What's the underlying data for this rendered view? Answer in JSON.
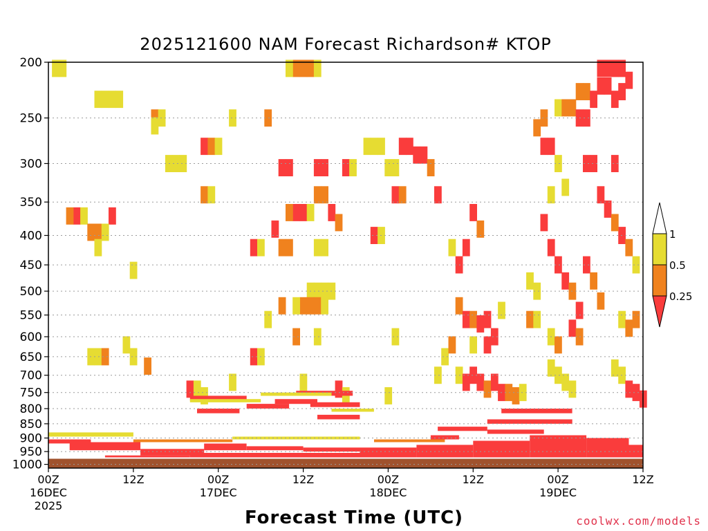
{
  "title": "2025121600 NAM Forecast Richardson# KTOP",
  "xlabel": "Forecast Time (UTC)",
  "credit": "coolwx.com/models",
  "chart_data": {
    "type": "heatmap",
    "title": "2025121600 NAM Forecast Richardson# KTOP",
    "xlabel": "Forecast Time (UTC)",
    "ylabel": "",
    "x_range_hours": [
      0,
      84
    ],
    "y_range_hPa": [
      1000,
      200
    ],
    "y_scale": "log-pressure (inverted)",
    "y_ticks": [
      200,
      250,
      300,
      350,
      400,
      450,
      500,
      550,
      600,
      650,
      700,
      750,
      800,
      850,
      900,
      950,
      1000
    ],
    "x_ticks": [
      {
        "hour": 0,
        "lines": [
          "00Z",
          "16DEC",
          "2025"
        ]
      },
      {
        "hour": 12,
        "lines": [
          "12Z"
        ]
      },
      {
        "hour": 24,
        "lines": [
          "00Z",
          "17DEC"
        ]
      },
      {
        "hour": 36,
        "lines": [
          "12Z"
        ]
      },
      {
        "hour": 48,
        "lines": [
          "00Z",
          "18DEC"
        ]
      },
      {
        "hour": 60,
        "lines": [
          "12Z"
        ]
      },
      {
        "hour": 72,
        "lines": [
          "00Z",
          "19DEC"
        ]
      },
      {
        "hour": 84,
        "lines": [
          "12Z"
        ]
      }
    ],
    "grid": "dotted horizontal lines at pressure ticks",
    "legend_placement": "right",
    "colorbar": {
      "levels": [
        {
          "label": "1",
          "value": 1
        },
        {
          "label": "0.5",
          "value": 0.5
        },
        {
          "label": "0.25",
          "value": 0.25
        }
      ],
      "bins": [
        {
          "range": ">1",
          "color": "#ffffff"
        },
        {
          "range": "0.5-1",
          "color": "#e6dc32"
        },
        {
          "range": "0.25-0.5",
          "color": "#f0821e"
        },
        {
          "range": "<0.25",
          "color": "#fa3c3c"
        }
      ]
    },
    "ground_color": "#a0522d",
    "ground_level_hPa": [
      975,
      1015
    ],
    "cells": [
      {
        "x": 1,
        "y": 205,
        "c": 0
      },
      {
        "x": 2,
        "y": 205,
        "c": 0
      },
      {
        "x": 7,
        "y": 232,
        "c": 0
      },
      {
        "x": 8,
        "y": 232,
        "c": 0
      },
      {
        "x": 9,
        "y": 232,
        "c": 0
      },
      {
        "x": 10,
        "y": 232,
        "c": 0
      },
      {
        "x": 15,
        "y": 250,
        "c": 1
      },
      {
        "x": 16,
        "y": 250,
        "c": 0
      },
      {
        "x": 15,
        "y": 258,
        "c": 0
      },
      {
        "x": 26,
        "y": 250,
        "c": 0
      },
      {
        "x": 31,
        "y": 250,
        "c": 1
      },
      {
        "x": 35,
        "y": 205,
        "c": 1
      },
      {
        "x": 36,
        "y": 205,
        "c": 1
      },
      {
        "x": 37,
        "y": 205,
        "c": 1
      },
      {
        "x": 34,
        "y": 205,
        "c": 0
      },
      {
        "x": 38,
        "y": 205,
        "c": 0
      },
      {
        "x": 22,
        "y": 280,
        "c": 2
      },
      {
        "x": 23,
        "y": 280,
        "c": 1
      },
      {
        "x": 24,
        "y": 280,
        "c": 0
      },
      {
        "x": 17,
        "y": 300,
        "c": 0
      },
      {
        "x": 18,
        "y": 300,
        "c": 0
      },
      {
        "x": 19,
        "y": 300,
        "c": 0
      },
      {
        "x": 22,
        "y": 340,
        "c": 1
      },
      {
        "x": 23,
        "y": 340,
        "c": 0
      },
      {
        "x": 33,
        "y": 305,
        "c": 2
      },
      {
        "x": 34,
        "y": 305,
        "c": 2
      },
      {
        "x": 38,
        "y": 305,
        "c": 2
      },
      {
        "x": 39,
        "y": 305,
        "c": 2
      },
      {
        "x": 42,
        "y": 305,
        "c": 2
      },
      {
        "x": 43,
        "y": 305,
        "c": 0
      },
      {
        "x": 45,
        "y": 280,
        "c": 0
      },
      {
        "x": 46,
        "y": 280,
        "c": 0
      },
      {
        "x": 47,
        "y": 280,
        "c": 0
      },
      {
        "x": 48,
        "y": 305,
        "c": 0
      },
      {
        "x": 49,
        "y": 305,
        "c": 0
      },
      {
        "x": 50,
        "y": 280,
        "c": 2
      },
      {
        "x": 51,
        "y": 280,
        "c": 2
      },
      {
        "x": 52,
        "y": 290,
        "c": 2
      },
      {
        "x": 53,
        "y": 290,
        "c": 2
      },
      {
        "x": 49,
        "y": 340,
        "c": 2
      },
      {
        "x": 50,
        "y": 340,
        "c": 1
      },
      {
        "x": 54,
        "y": 305,
        "c": 1
      },
      {
        "x": 55,
        "y": 340,
        "c": 2
      },
      {
        "x": 35,
        "y": 365,
        "c": 2
      },
      {
        "x": 36,
        "y": 365,
        "c": 2
      },
      {
        "x": 34,
        "y": 365,
        "c": 1
      },
      {
        "x": 37,
        "y": 365,
        "c": 0
      },
      {
        "x": 38,
        "y": 340,
        "c": 1
      },
      {
        "x": 39,
        "y": 340,
        "c": 1
      },
      {
        "x": 40,
        "y": 365,
        "c": 2
      },
      {
        "x": 41,
        "y": 380,
        "c": 1
      },
      {
        "x": 46,
        "y": 400,
        "c": 2
      },
      {
        "x": 47,
        "y": 400,
        "c": 0
      },
      {
        "x": 32,
        "y": 390,
        "c": 2
      },
      {
        "x": 33,
        "y": 420,
        "c": 1
      },
      {
        "x": 34,
        "y": 420,
        "c": 1
      },
      {
        "x": 29,
        "y": 420,
        "c": 2
      },
      {
        "x": 30,
        "y": 420,
        "c": 0
      },
      {
        "x": 38,
        "y": 420,
        "c": 0
      },
      {
        "x": 39,
        "y": 420,
        "c": 0
      },
      {
        "x": 4,
        "y": 370,
        "c": 2
      },
      {
        "x": 3,
        "y": 370,
        "c": 1
      },
      {
        "x": 5,
        "y": 370,
        "c": 0
      },
      {
        "x": 9,
        "y": 370,
        "c": 2
      },
      {
        "x": 6,
        "y": 395,
        "c": 1
      },
      {
        "x": 7,
        "y": 395,
        "c": 1
      },
      {
        "x": 8,
        "y": 395,
        "c": 0
      },
      {
        "x": 7,
        "y": 420,
        "c": 0
      },
      {
        "x": 12,
        "y": 460,
        "c": 0
      },
      {
        "x": 37,
        "y": 500,
        "c": 0
      },
      {
        "x": 38,
        "y": 500,
        "c": 0
      },
      {
        "x": 39,
        "y": 500,
        "c": 0
      },
      {
        "x": 40,
        "y": 500,
        "c": 0
      },
      {
        "x": 36,
        "y": 530,
        "c": 1
      },
      {
        "x": 37,
        "y": 530,
        "c": 1
      },
      {
        "x": 38,
        "y": 530,
        "c": 1
      },
      {
        "x": 39,
        "y": 530,
        "c": 0
      },
      {
        "x": 33,
        "y": 530,
        "c": 1
      },
      {
        "x": 35,
        "y": 530,
        "c": 0
      },
      {
        "x": 31,
        "y": 560,
        "c": 0
      },
      {
        "x": 35,
        "y": 600,
        "c": 1
      },
      {
        "x": 38,
        "y": 600,
        "c": 0
      },
      {
        "x": 49,
        "y": 600,
        "c": 0
      },
      {
        "x": 11,
        "y": 620,
        "c": 0
      },
      {
        "x": 6,
        "y": 650,
        "c": 0
      },
      {
        "x": 7,
        "y": 650,
        "c": 0
      },
      {
        "x": 8,
        "y": 650,
        "c": 1
      },
      {
        "x": 12,
        "y": 650,
        "c": 0
      },
      {
        "x": 14,
        "y": 675,
        "c": 1
      },
      {
        "x": 29,
        "y": 650,
        "c": 2
      },
      {
        "x": 30,
        "y": 650,
        "c": 0
      },
      {
        "x": 56,
        "y": 650,
        "c": 0
      },
      {
        "x": 55,
        "y": 700,
        "c": 0
      },
      {
        "x": 57,
        "y": 420,
        "c": 0
      },
      {
        "x": 58,
        "y": 450,
        "c": 2
      },
      {
        "x": 59,
        "y": 420,
        "c": 2
      },
      {
        "x": 60,
        "y": 365,
        "c": 2
      },
      {
        "x": 61,
        "y": 390,
        "c": 1
      },
      {
        "x": 58,
        "y": 530,
        "c": 1
      },
      {
        "x": 59,
        "y": 560,
        "c": 2
      },
      {
        "x": 60,
        "y": 560,
        "c": 1
      },
      {
        "x": 61,
        "y": 570,
        "c": 2
      },
      {
        "x": 62,
        "y": 560,
        "c": 2
      },
      {
        "x": 63,
        "y": 600,
        "c": 2
      },
      {
        "x": 62,
        "y": 620,
        "c": 2
      },
      {
        "x": 60,
        "y": 620,
        "c": 0
      },
      {
        "x": 57,
        "y": 620,
        "c": 1
      },
      {
        "x": 58,
        "y": 700,
        "c": 0
      },
      {
        "x": 59,
        "y": 720,
        "c": 2
      },
      {
        "x": 60,
        "y": 700,
        "c": 2
      },
      {
        "x": 61,
        "y": 720,
        "c": 2
      },
      {
        "x": 62,
        "y": 740,
        "c": 1
      },
      {
        "x": 63,
        "y": 720,
        "c": 2
      },
      {
        "x": 64,
        "y": 750,
        "c": 2
      },
      {
        "x": 65,
        "y": 750,
        "c": 1
      },
      {
        "x": 66,
        "y": 760,
        "c": 1
      },
      {
        "x": 67,
        "y": 750,
        "c": 0
      },
      {
        "x": 64,
        "y": 540,
        "c": 0
      },
      {
        "x": 68,
        "y": 480,
        "c": 0
      },
      {
        "x": 69,
        "y": 500,
        "c": 0
      },
      {
        "x": 68,
        "y": 560,
        "c": 1
      },
      {
        "x": 69,
        "y": 560,
        "c": 0
      },
      {
        "x": 69,
        "y": 260,
        "c": 1
      },
      {
        "x": 70,
        "y": 280,
        "c": 2
      },
      {
        "x": 71,
        "y": 280,
        "c": 2
      },
      {
        "x": 70,
        "y": 250,
        "c": 1
      },
      {
        "x": 72,
        "y": 240,
        "c": 0
      },
      {
        "x": 73,
        "y": 240,
        "c": 1
      },
      {
        "x": 74,
        "y": 240,
        "c": 1
      },
      {
        "x": 75,
        "y": 225,
        "c": 1
      },
      {
        "x": 76,
        "y": 225,
        "c": 1
      },
      {
        "x": 75,
        "y": 250,
        "c": 2
      },
      {
        "x": 76,
        "y": 250,
        "c": 2
      },
      {
        "x": 77,
        "y": 232,
        "c": 2
      },
      {
        "x": 78,
        "y": 220,
        "c": 2
      },
      {
        "x": 79,
        "y": 220,
        "c": 2
      },
      {
        "x": 78,
        "y": 205,
        "c": 2
      },
      {
        "x": 79,
        "y": 205,
        "c": 2
      },
      {
        "x": 80,
        "y": 205,
        "c": 2
      },
      {
        "x": 81,
        "y": 205,
        "c": 2
      },
      {
        "x": 82,
        "y": 215,
        "c": 2
      },
      {
        "x": 80,
        "y": 232,
        "c": 2
      },
      {
        "x": 81,
        "y": 225,
        "c": 2
      },
      {
        "x": 72,
        "y": 300,
        "c": 0
      },
      {
        "x": 73,
        "y": 330,
        "c": 0
      },
      {
        "x": 71,
        "y": 340,
        "c": 0
      },
      {
        "x": 70,
        "y": 380,
        "c": 2
      },
      {
        "x": 71,
        "y": 420,
        "c": 2
      },
      {
        "x": 72,
        "y": 450,
        "c": 2
      },
      {
        "x": 73,
        "y": 480,
        "c": 2
      },
      {
        "x": 74,
        "y": 500,
        "c": 1
      },
      {
        "x": 75,
        "y": 540,
        "c": 2
      },
      {
        "x": 76,
        "y": 450,
        "c": 2
      },
      {
        "x": 77,
        "y": 480,
        "c": 1
      },
      {
        "x": 78,
        "y": 520,
        "c": 1
      },
      {
        "x": 76,
        "y": 300,
        "c": 2
      },
      {
        "x": 77,
        "y": 300,
        "c": 2
      },
      {
        "x": 78,
        "y": 340,
        "c": 2
      },
      {
        "x": 79,
        "y": 360,
        "c": 2
      },
      {
        "x": 80,
        "y": 300,
        "c": 2
      },
      {
        "x": 81,
        "y": 400,
        "c": 2
      },
      {
        "x": 80,
        "y": 380,
        "c": 1
      },
      {
        "x": 82,
        "y": 420,
        "c": 1
      },
      {
        "x": 83,
        "y": 450,
        "c": 0
      },
      {
        "x": 81,
        "y": 560,
        "c": 0
      },
      {
        "x": 82,
        "y": 580,
        "c": 1
      },
      {
        "x": 83,
        "y": 560,
        "c": 1
      },
      {
        "x": 71,
        "y": 600,
        "c": 0
      },
      {
        "x": 72,
        "y": 620,
        "c": 1
      },
      {
        "x": 74,
        "y": 580,
        "c": 2
      },
      {
        "x": 75,
        "y": 600,
        "c": 1
      },
      {
        "x": 71,
        "y": 680,
        "c": 0
      },
      {
        "x": 72,
        "y": 700,
        "c": 0
      },
      {
        "x": 73,
        "y": 720,
        "c": 0
      },
      {
        "x": 74,
        "y": 740,
        "c": 0
      },
      {
        "x": 80,
        "y": 680,
        "c": 0
      },
      {
        "x": 81,
        "y": 700,
        "c": 0
      },
      {
        "x": 82,
        "y": 740,
        "c": 2
      },
      {
        "x": 83,
        "y": 750,
        "c": 2
      },
      {
        "x": 84,
        "y": 770,
        "c": 2
      },
      {
        "x": 20,
        "y": 740,
        "c": 2
      },
      {
        "x": 21,
        "y": 740,
        "c": 0
      },
      {
        "x": 22,
        "y": 760,
        "c": 0
      },
      {
        "x": 26,
        "y": 720,
        "c": 0
      },
      {
        "x": 36,
        "y": 720,
        "c": 0
      },
      {
        "x": 41,
        "y": 740,
        "c": 2
      },
      {
        "x": 42,
        "y": 760,
        "c": 0
      },
      {
        "x": 48,
        "y": 760,
        "c": 0
      }
    ],
    "bands": [
      {
        "x0": 20,
        "x1": 28,
        "p_top": 760,
        "p_bot": 775,
        "c": 2
      },
      {
        "x0": 21,
        "x1": 27,
        "p_top": 800,
        "p_bot": 815,
        "c": 2
      },
      {
        "x0": 28,
        "x1": 34,
        "p_top": 785,
        "p_bot": 800,
        "c": 2
      },
      {
        "x0": 32,
        "x1": 38,
        "p_top": 770,
        "p_bot": 785,
        "c": 2
      },
      {
        "x0": 35,
        "x1": 43,
        "p_top": 745,
        "p_bot": 760,
        "c": 2
      },
      {
        "x0": 37,
        "x1": 44,
        "p_top": 780,
        "p_bot": 795,
        "c": 2
      },
      {
        "x0": 38,
        "x1": 44,
        "p_top": 820,
        "p_bot": 835,
        "c": 2
      },
      {
        "x0": 3,
        "x1": 13,
        "p_top": 915,
        "p_bot": 945,
        "c": 2
      },
      {
        "x0": 0,
        "x1": 6,
        "p_top": 905,
        "p_bot": 920,
        "c": 2
      },
      {
        "x0": 13,
        "x1": 22,
        "p_top": 940,
        "p_bot": 965,
        "c": 2
      },
      {
        "x0": 22,
        "x1": 28,
        "p_top": 920,
        "p_bot": 945,
        "c": 2
      },
      {
        "x0": 28,
        "x1": 36,
        "p_top": 930,
        "p_bot": 945,
        "c": 2
      },
      {
        "x0": 36,
        "x1": 44,
        "p_top": 935,
        "p_bot": 950,
        "c": 2
      },
      {
        "x0": 44,
        "x1": 52,
        "p_top": 935,
        "p_bot": 975,
        "c": 2
      },
      {
        "x0": 52,
        "x1": 60,
        "p_top": 925,
        "p_bot": 975,
        "c": 2
      },
      {
        "x0": 60,
        "x1": 68,
        "p_top": 910,
        "p_bot": 975,
        "c": 2
      },
      {
        "x0": 68,
        "x1": 76,
        "p_top": 890,
        "p_bot": 975,
        "c": 2
      },
      {
        "x0": 76,
        "x1": 82,
        "p_top": 900,
        "p_bot": 975,
        "c": 2
      },
      {
        "x0": 82,
        "x1": 84,
        "p_top": 925,
        "p_bot": 975,
        "c": 2
      },
      {
        "x0": 8,
        "x1": 20,
        "p_top": 965,
        "p_bot": 975,
        "c": 2
      },
      {
        "x0": 20,
        "x1": 44,
        "p_top": 955,
        "p_bot": 975,
        "c": 2
      },
      {
        "x0": 62,
        "x1": 74,
        "p_top": 835,
        "p_bot": 850,
        "c": 2
      },
      {
        "x0": 64,
        "x1": 74,
        "p_top": 800,
        "p_bot": 815,
        "c": 2
      },
      {
        "x0": 62,
        "x1": 70,
        "p_top": 870,
        "p_bot": 885,
        "c": 2
      },
      {
        "x0": 55,
        "x1": 62,
        "p_top": 860,
        "p_bot": 875,
        "c": 2
      },
      {
        "x0": 54,
        "x1": 58,
        "p_top": 890,
        "p_bot": 905,
        "c": 2
      },
      {
        "x0": 0,
        "x1": 12,
        "p_top": 880,
        "p_bot": 895,
        "c": 0
      },
      {
        "x0": 12,
        "x1": 26,
        "p_top": 905,
        "p_bot": 915,
        "c": 1
      },
      {
        "x0": 26,
        "x1": 44,
        "p_top": 895,
        "p_bot": 905,
        "c": 0
      },
      {
        "x0": 46,
        "x1": 56,
        "p_top": 905,
        "p_bot": 915,
        "c": 1
      },
      {
        "x0": 20,
        "x1": 30,
        "p_top": 770,
        "p_bot": 780,
        "c": 0
      },
      {
        "x0": 30,
        "x1": 40,
        "p_top": 750,
        "p_bot": 760,
        "c": 0
      },
      {
        "x0": 40,
        "x1": 46,
        "p_top": 800,
        "p_bot": 810,
        "c": 0
      }
    ]
  }
}
